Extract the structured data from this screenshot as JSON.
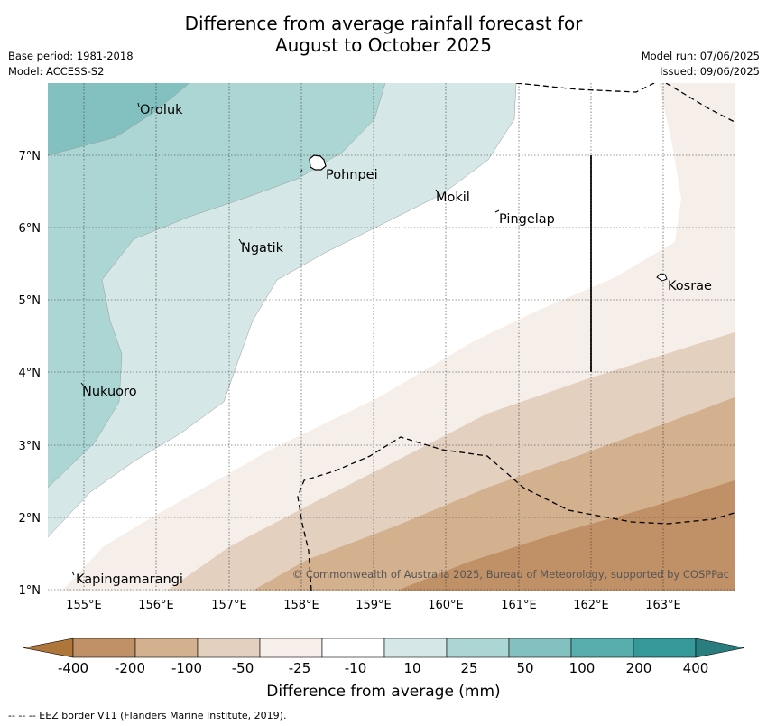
{
  "title": {
    "line1": "Difference from average rainfall forecast for",
    "line2": "August to October 2025"
  },
  "meta_left": {
    "base_period": "Base period: 1981-2018",
    "model": "Model: ACCESS-S2"
  },
  "meta_right": {
    "model_run": "Model run: 07/06/2025",
    "issued": "Issued: 09/06/2025"
  },
  "map": {
    "lon_labels": [
      "155°E",
      "156°E",
      "157°E",
      "158°E",
      "159°E",
      "160°E",
      "161°E",
      "162°E",
      "163°E"
    ],
    "lat_labels": [
      "7°N",
      "6°N",
      "5°N",
      "4°N",
      "3°N",
      "2°N",
      "1°N"
    ],
    "places": [
      "Oroluk",
      "Pohnpei",
      "Mokil",
      "Pingelap",
      "Ngatik",
      "Kosrae",
      "Nukuoro",
      "Kapingamarangi"
    ],
    "copyright": "© Commonwealth of Australia 2025, Bureau of Meteorology, supported by COSPPac"
  },
  "legend": {
    "ticks": [
      "-400",
      "-200",
      "-100",
      "-50",
      "-25",
      "-10",
      "10",
      "25",
      "50",
      "100",
      "200",
      "400"
    ],
    "colors": [
      "#ae763a",
      "#c09066",
      "#d3b08e",
      "#e3d0bf",
      "#f5eee9",
      "#ffffff",
      "#d5e8e7",
      "#acd6d4",
      "#82c1c0",
      "#58aeac",
      "#35999a",
      "#2a7d7e"
    ],
    "title": "Difference from average (mm)"
  },
  "eez_note": "--  --  -- EEZ border V11 (Flanders Marine Institute, 2019)."
}
